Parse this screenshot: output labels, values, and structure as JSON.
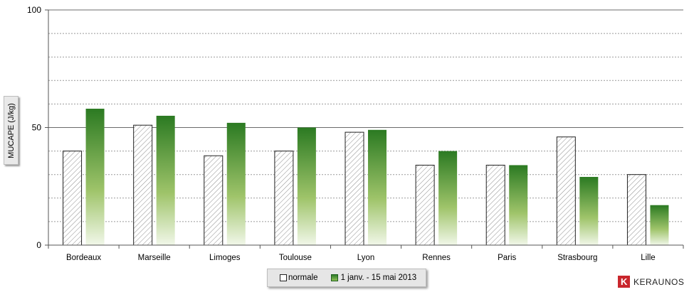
{
  "chart_data": {
    "type": "bar",
    "title": "",
    "xlabel": "",
    "ylabel": "MUCAPE (J/kg)",
    "ylim": [
      0,
      100
    ],
    "yticks": [
      0,
      50,
      100
    ],
    "grid": true,
    "legend_position": "bottom",
    "categories": [
      "Bordeaux",
      "Marseille",
      "Limoges",
      "Toulouse",
      "Lyon",
      "Rennes",
      "Paris",
      "Strasbourg",
      "Lille"
    ],
    "series": [
      {
        "name": "normale",
        "values": [
          40,
          51,
          38,
          40,
          48,
          34,
          34,
          46,
          30
        ],
        "style": "hatched",
        "color": "#ffffff"
      },
      {
        "name": "1 janv. - 15 mai 2013",
        "values": [
          58,
          55,
          52,
          50,
          49,
          40,
          34,
          29,
          17
        ],
        "style": "gradient",
        "color": "#2a7a22"
      }
    ]
  },
  "legend": {
    "normale": "normale",
    "period": "1 janv. - 15 mai 2013"
  },
  "brand": {
    "logo_letter": "K",
    "name": "KERAUNOS",
    "color": "#c9262c"
  }
}
